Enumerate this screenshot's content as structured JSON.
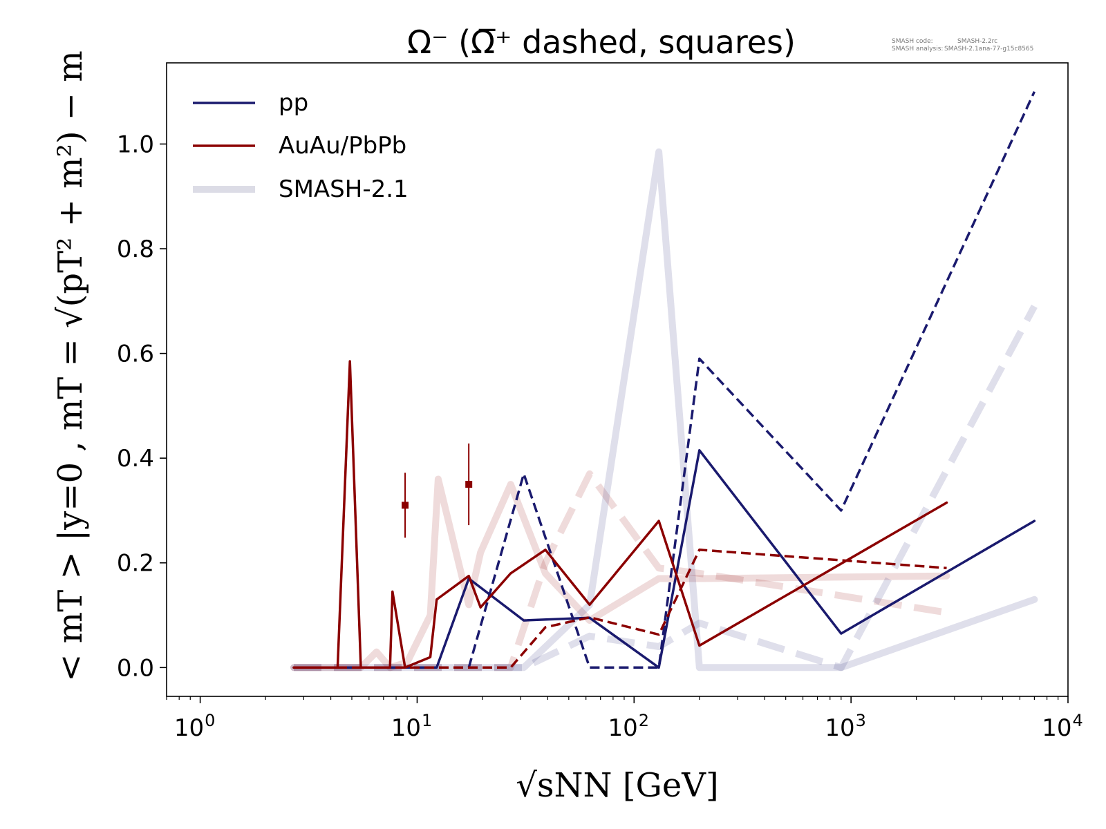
{
  "chart_data": {
    "type": "line",
    "title": "Ω⁻ (Ω̅⁺ dashed, squares)",
    "xlabel": "√sNN [GeV]",
    "ylabel": "< mT > |y=0 ,  mT = √(pT² + m²) − m",
    "xscale": "log",
    "xlim": [
      0.7,
      10000
    ],
    "ylim": [
      -0.055,
      1.155
    ],
    "x_ticks": [
      1,
      10,
      100,
      1000,
      10000
    ],
    "x_tick_labels": [
      {
        "base": "10",
        "exp": "0"
      },
      {
        "base": "10",
        "exp": "1"
      },
      {
        "base": "10",
        "exp": "2"
      },
      {
        "base": "10",
        "exp": "3"
      },
      {
        "base": "10",
        "exp": "4"
      }
    ],
    "y_ticks": [
      0.0,
      0.2,
      0.4,
      0.6,
      0.8,
      1.0
    ],
    "y_tick_labels": [
      "0.0",
      "0.2",
      "0.4",
      "0.6",
      "0.8",
      "1.0"
    ],
    "grid": false,
    "legend_position": "top-left",
    "legend": [
      {
        "label": "pp",
        "color": "#1a1a6e",
        "style": "thin"
      },
      {
        "label": "AuAu/PbPb",
        "color": "#8b0000",
        "style": "thin"
      },
      {
        "label": "SMASH-2.1",
        "color": "#dcdce6",
        "style": "thick"
      }
    ],
    "version_info": [
      {
        "label": "SMASH code:",
        "value": "SMASH-2.2rc"
      },
      {
        "label": "SMASH analysis:",
        "value": "SMASH-2.1ana-77-g15c8565"
      }
    ],
    "series": [
      {
        "id": "ref-aa-solid",
        "color": "#8b0000",
        "opacity": 0.14,
        "width": 10,
        "dashed": false,
        "x": [
          2.7,
          5.5,
          6.5,
          7.5,
          9,
          11.5,
          12.5,
          17.3,
          19.6,
          27,
          39,
          62.4,
          130,
          200,
          2760
        ],
        "y": [
          0,
          0,
          0.03,
          0,
          0.01,
          0.1,
          0.36,
          0.12,
          0.22,
          0.35,
          0.18,
          0.09,
          0.17,
          0.17,
          0.175
        ]
      },
      {
        "id": "ref-aa-dashed",
        "color": "#8b0000",
        "opacity": 0.14,
        "width": 10,
        "dashed": true,
        "x": [
          2.7,
          27,
          39,
          62.4,
          130,
          200,
          2760
        ],
        "y": [
          0,
          0,
          0.2,
          0.37,
          0.19,
          0.18,
          0.105
        ]
      },
      {
        "id": "ref-pp-solid",
        "color": "#1a1a6e",
        "opacity": 0.14,
        "width": 10,
        "dashed": false,
        "x": [
          2.7,
          17.3,
          31,
          62.4,
          130,
          200,
          900,
          7000
        ],
        "y": [
          0,
          0,
          0,
          0.12,
          0.985,
          0.0,
          0.0,
          0.13
        ]
      },
      {
        "id": "ref-pp-dashed",
        "color": "#1a1a6e",
        "opacity": 0.14,
        "width": 10,
        "dashed": true,
        "x": [
          2.7,
          31,
          62.4,
          130,
          200,
          900,
          7000
        ],
        "y": [
          0,
          0,
          0.06,
          0.04,
          0.085,
          0,
          0.69
        ]
      },
      {
        "id": "pp-solid",
        "color": "#1a1a6e",
        "opacity": 1,
        "width": 3.5,
        "dashed": false,
        "x": [
          2.7,
          12.3,
          17.3,
          31,
          62.4,
          130,
          200,
          900,
          7000
        ],
        "y": [
          0,
          0,
          0.17,
          0.09,
          0.095,
          0.0,
          0.415,
          0.065,
          0.28
        ]
      },
      {
        "id": "pp-dashed",
        "color": "#1a1a6e",
        "opacity": 1,
        "width": 3.5,
        "dashed": true,
        "x": [
          17.3,
          31,
          62.4,
          130,
          200,
          900,
          7000
        ],
        "y": [
          0,
          0.37,
          0,
          0,
          0.59,
          0.3,
          1.1
        ]
      },
      {
        "id": "aa-solid",
        "color": "#8b0000",
        "opacity": 1,
        "width": 3.5,
        "dashed": false,
        "x": [
          2.7,
          4.3,
          4.9,
          5.5,
          7.5,
          7.7,
          8.8,
          11.5,
          12.3,
          17.3,
          19.6,
          27,
          39,
          62.4,
          130,
          200,
          2760
        ],
        "y": [
          0,
          0,
          0.585,
          0,
          0,
          0.145,
          0,
          0.02,
          0.13,
          0.175,
          0.115,
          0.18,
          0.225,
          0.12,
          0.28,
          0.042,
          0.315
        ]
      },
      {
        "id": "aa-dashed",
        "color": "#8b0000",
        "opacity": 1,
        "width": 3.5,
        "dashed": true,
        "x": [
          2.7,
          27,
          39,
          62.4,
          130,
          200,
          2760
        ],
        "y": [
          0,
          0,
          0.077,
          0.096,
          0.063,
          0.225,
          0.19
        ]
      }
    ],
    "measurements": [
      {
        "x": 8.8,
        "y": 0.31,
        "yerr": 0.062,
        "color": "#8b0000",
        "marker": "square"
      },
      {
        "x": 17.3,
        "y": 0.35,
        "yerr": 0.078,
        "color": "#8b0000",
        "marker": "square"
      }
    ]
  }
}
